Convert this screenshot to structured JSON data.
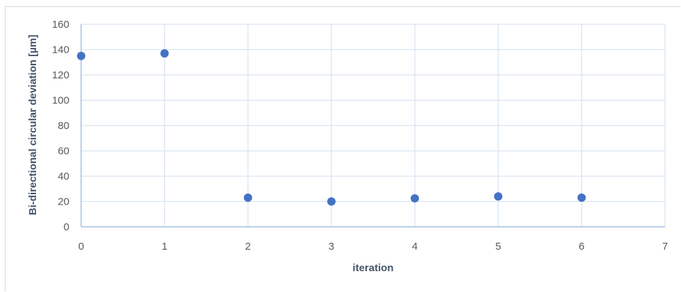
{
  "chart_data": {
    "type": "scatter",
    "title": "",
    "xlabel": "iteration",
    "ylabel": "Bi-directional circular deviation [µm]",
    "xlim": [
      0,
      7
    ],
    "ylim": [
      0,
      160
    ],
    "xticks": [
      0,
      1,
      2,
      3,
      4,
      5,
      6,
      7
    ],
    "yticks": [
      0,
      20,
      40,
      60,
      80,
      100,
      120,
      140,
      160
    ],
    "grid": true,
    "legend": "none",
    "series": [
      {
        "color": "#4472c4",
        "points": [
          {
            "x": 0,
            "y": 135
          },
          {
            "x": 1,
            "y": 137
          },
          {
            "x": 2,
            "y": 23
          },
          {
            "x": 3,
            "y": 20
          },
          {
            "x": 4,
            "y": 22.5
          },
          {
            "x": 5,
            "y": 24
          },
          {
            "x": 6,
            "y": 23
          }
        ]
      }
    ],
    "colors": {
      "gridline": "#d9e4f2",
      "axis": "#a6bfe0",
      "marker": "#4472c4"
    }
  }
}
